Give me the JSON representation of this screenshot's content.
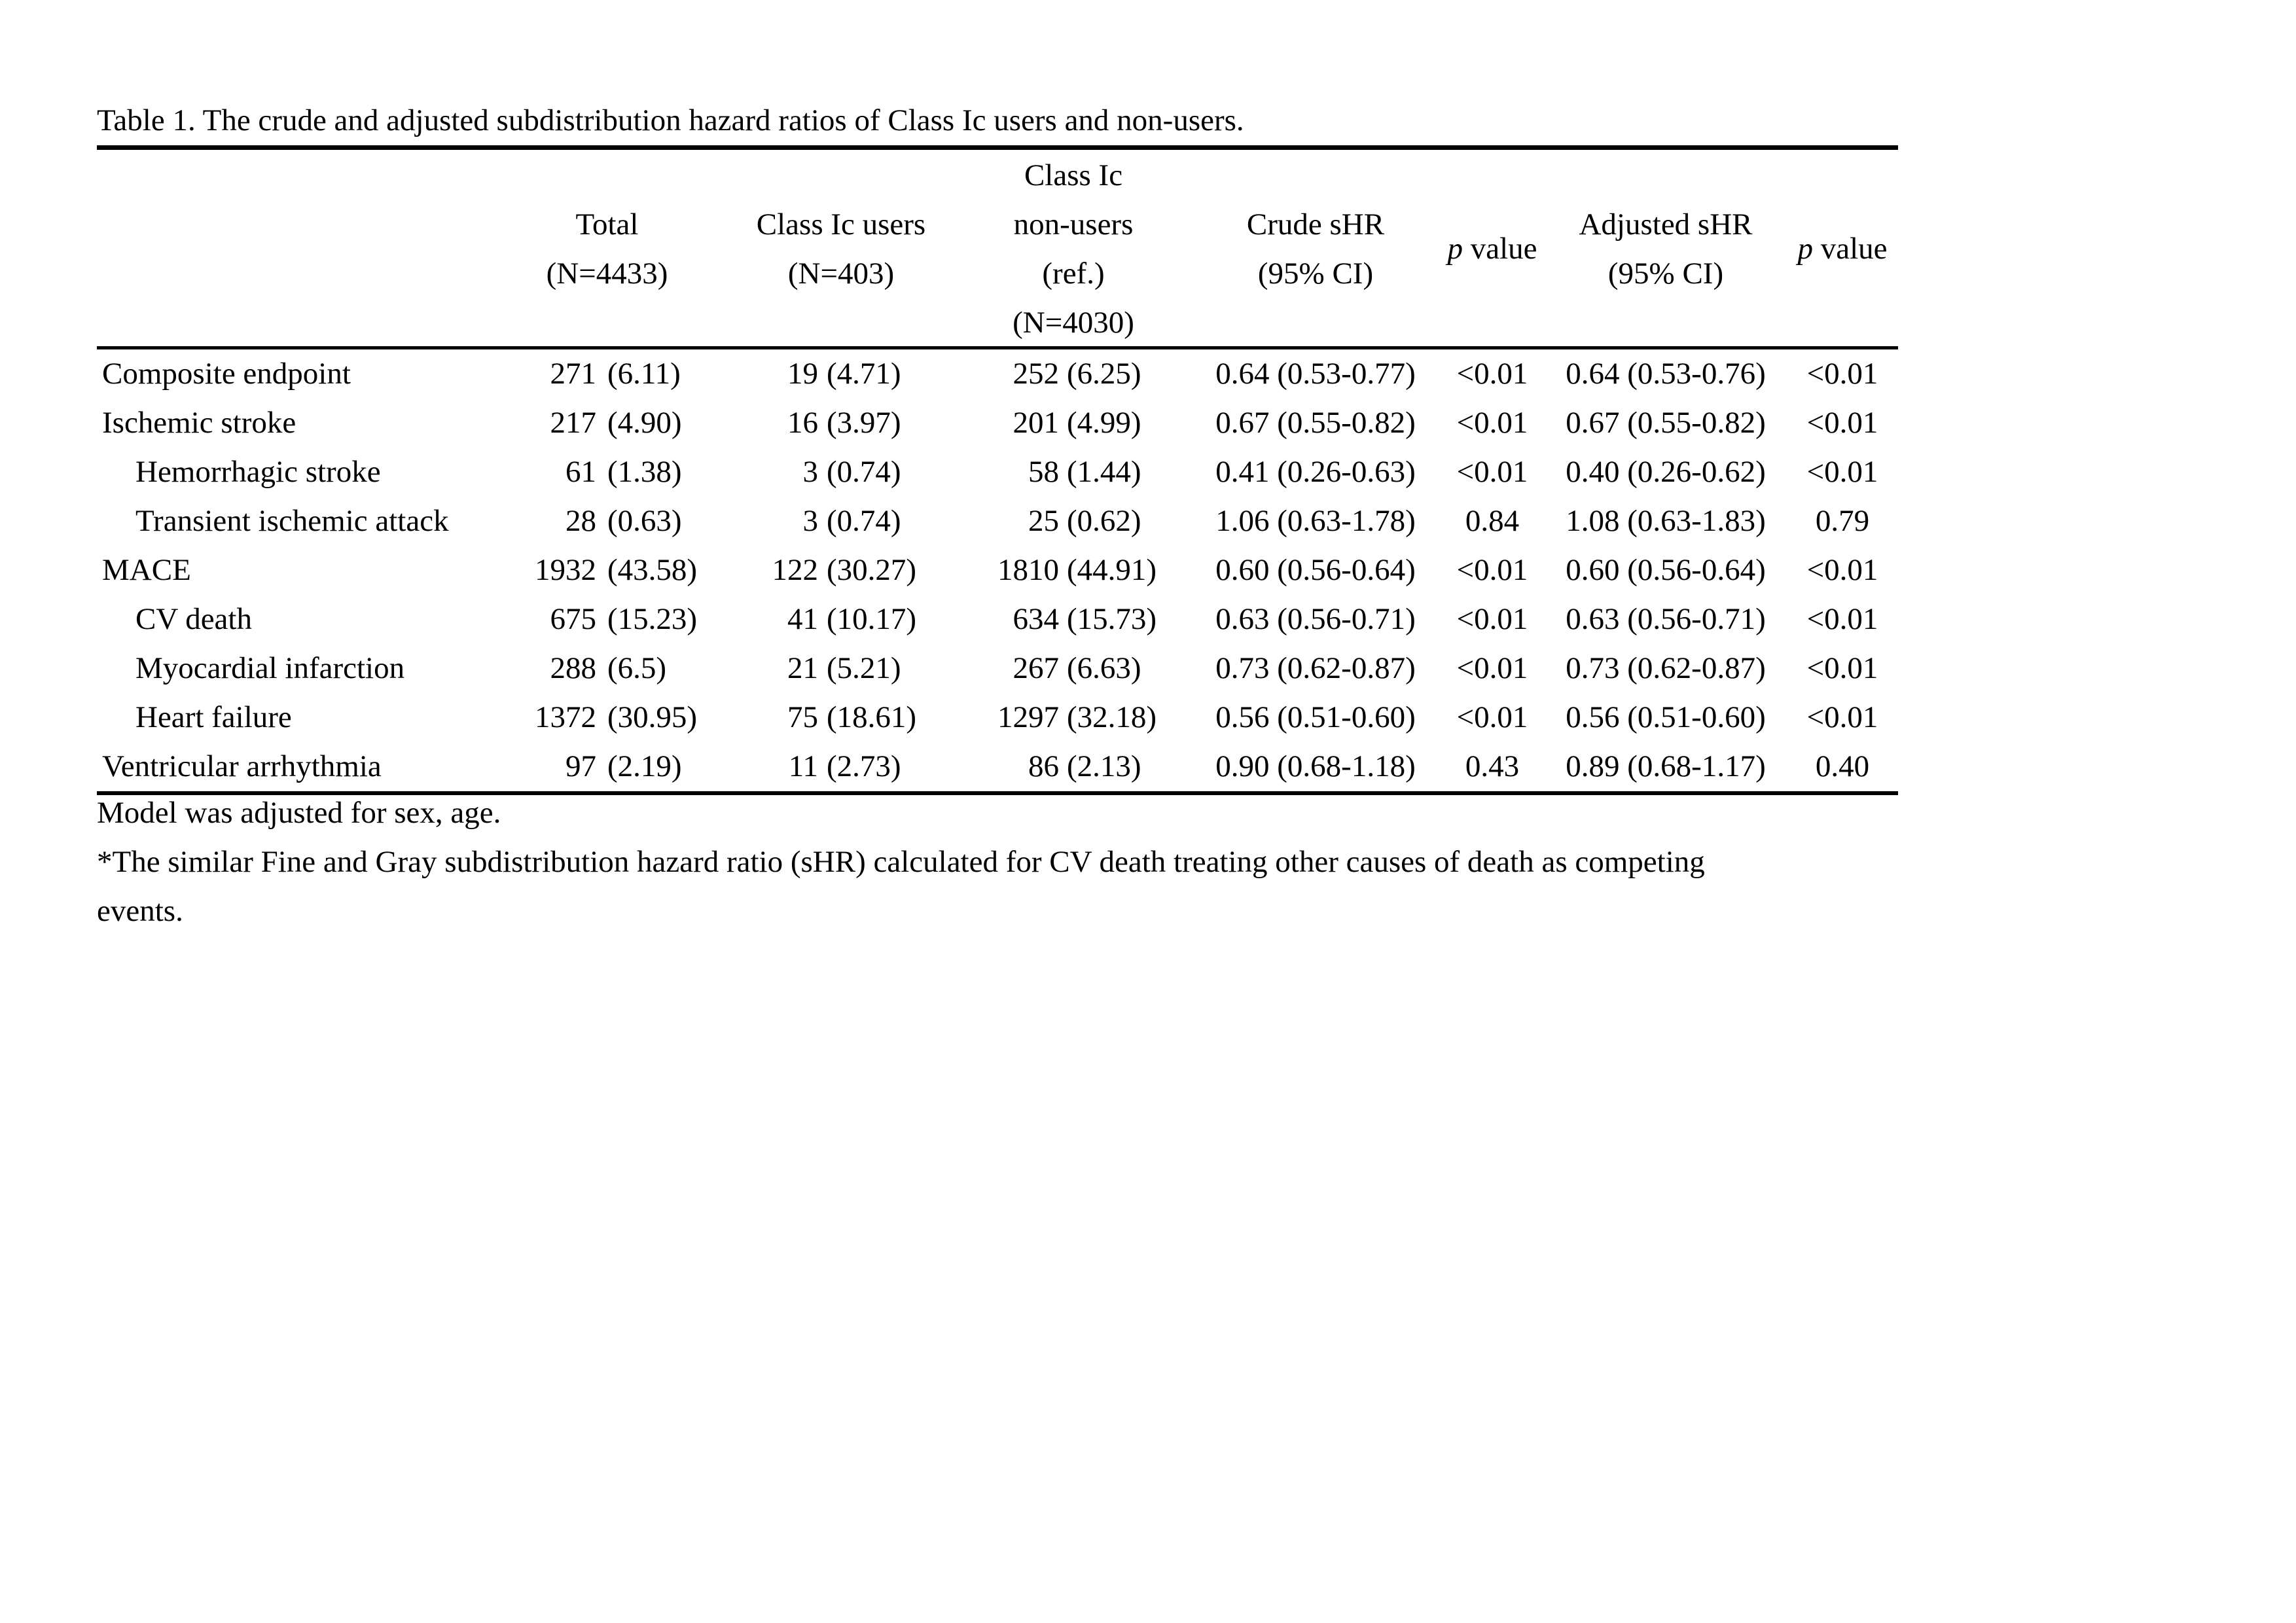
{
  "title": "Table 1. The crude and adjusted subdistribution hazard ratios of Class Ic users and non-users.",
  "table": {
    "header": {
      "total": [
        "Total",
        "(N=4433)"
      ],
      "users": [
        "Class Ic users",
        "(N=403)"
      ],
      "nonusers": [
        "Class Ic",
        "non-users",
        "(ref.)",
        "(N=4030)"
      ],
      "crude": [
        "Crude sHR",
        "(95% CI)"
      ],
      "p1": "p value",
      "adjusted": [
        "Adjusted sHR",
        "(95% CI)"
      ],
      "p2": "p value"
    },
    "rows": [
      {
        "label": "Composite endpoint",
        "indent": false,
        "total": "271 (6.11)",
        "users": "19 (4.71)",
        "nonusers": "252 (6.25)",
        "crude": "0.64 (0.53-0.77)",
        "p1": "<0.01",
        "adjusted": "0.64 (0.53-0.76)",
        "p2": "<0.01"
      },
      {
        "label": "Ischemic stroke",
        "indent": false,
        "total": "217 (4.90)",
        "users": "16 (3.97)",
        "nonusers": "201 (4.99)",
        "crude": "0.67 (0.55-0.82)",
        "p1": "<0.01",
        "adjusted": "0.67 (0.55-0.82)",
        "p2": "<0.01"
      },
      {
        "label": "Hemorrhagic stroke",
        "indent": true,
        "total": "61 (1.38)",
        "users": "3 (0.74)",
        "nonusers": "58 (1.44)",
        "crude": "0.41 (0.26-0.63)",
        "p1": "<0.01",
        "adjusted": "0.40 (0.26-0.62)",
        "p2": "<0.01"
      },
      {
        "label": "Transient ischemic attack",
        "indent": true,
        "total": "28 (0.63)",
        "users": "3 (0.74)",
        "nonusers": "25 (0.62)",
        "crude": "1.06 (0.63-1.78)",
        "p1": "0.84",
        "adjusted": "1.08 (0.63-1.83)",
        "p2": "0.79"
      },
      {
        "label": "MACE",
        "indent": false,
        "total": "1932 (43.58)",
        "users": "122 (30.27)",
        "nonusers": "1810 (44.91)",
        "crude": "0.60 (0.56-0.64)",
        "p1": "<0.01",
        "adjusted": "0.60 (0.56-0.64)",
        "p2": "<0.01"
      },
      {
        "label": "CV death",
        "indent": true,
        "total": "675 (15.23)",
        "users": "41 (10.17)",
        "nonusers": "634 (15.73)",
        "crude": "0.63 (0.56-0.71)",
        "p1": "<0.01",
        "adjusted": "0.63 (0.56-0.71)",
        "p2": "<0.01"
      },
      {
        "label": "Myocardial infarction",
        "indent": true,
        "total": "288 (6.5)",
        "users": "21 (5.21)",
        "nonusers": "267 (6.63)",
        "crude": "0.73 (0.62-0.87)",
        "p1": "<0.01",
        "adjusted": "0.73 (0.62-0.87)",
        "p2": "<0.01"
      },
      {
        "label": "Heart failure",
        "indent": true,
        "total": "1372 (30.95)",
        "users": "75 (18.61)",
        "nonusers": "1297 (32.18)",
        "crude": "0.56 (0.51-0.60)",
        "p1": "<0.01",
        "adjusted": "0.56 (0.51-0.60)",
        "p2": "<0.01"
      },
      {
        "label": "Ventricular arrhythmia",
        "indent": false,
        "total": "97 (2.19)",
        "users": "11 (2.73)",
        "nonusers": "86 (2.13)",
        "crude": "0.90 (0.68-1.18)",
        "p1": "0.43",
        "adjusted": "0.89 (0.68-1.17)",
        "p2": "0.40"
      }
    ]
  },
  "footnotes": [
    "Model was adjusted for sex, age.",
    "*The similar Fine and Gray subdistribution hazard ratio (sHR) calculated for CV death treating other causes of death as competing",
    "events."
  ]
}
